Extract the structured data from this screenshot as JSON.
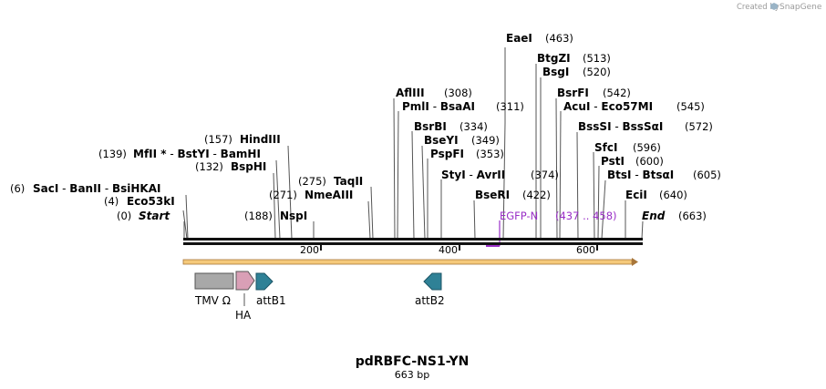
{
  "credit": {
    "text": "Created by",
    "brand": "SnapGene"
  },
  "title": "pdRBFC-NS1-YN",
  "length_label": "663 bp",
  "scale": {
    "start": 0,
    "end": 663,
    "ticks": [
      "200",
      "400",
      "600"
    ]
  },
  "sites": [
    {
      "id": "start",
      "pos": "(0)",
      "name": "Start",
      "italic": true
    },
    {
      "id": "eco53ki",
      "pos": "(4)",
      "name": "Eco53kI"
    },
    {
      "id": "saci",
      "pos": "(6)",
      "name": "SacI",
      "sep1": " - ",
      "name2": "BanII",
      "sep2": " - ",
      "name3": "BsiHKAI"
    },
    {
      "id": "bsphi",
      "pos": "(132)",
      "name": "BspHI"
    },
    {
      "id": "mfli",
      "pos": "(139)",
      "name": "MfII *",
      "sep1": " - ",
      "name2": "BstYI",
      "sep2": " - ",
      "name3": "BamHI"
    },
    {
      "id": "hindiii",
      "pos": "(157)",
      "name": "HindIII"
    },
    {
      "id": "nspi",
      "pos": "(188)",
      "name": "NspI"
    },
    {
      "id": "nmeaiii",
      "pos": "(271)",
      "name": "NmeAIII"
    },
    {
      "id": "taqii",
      "pos": "(275)",
      "name": "TaqII"
    },
    {
      "id": "afliii",
      "pos": "(308)",
      "name": "AflIII"
    },
    {
      "id": "pmli",
      "pos": "(311)",
      "name": "PmlI",
      "sep1": " - ",
      "name2": "BsaAI"
    },
    {
      "id": "bsrbi",
      "pos": "(334)",
      "name": "BsrBI"
    },
    {
      "id": "bseyi",
      "pos": "(349)",
      "name": "BseYI"
    },
    {
      "id": "pspfi",
      "pos": "(353)",
      "name": "PspFI"
    },
    {
      "id": "styi",
      "pos": "(374)",
      "name": "StyI",
      "sep1": " - ",
      "name2": "AvrII"
    },
    {
      "id": "beseri",
      "pos": "(422)",
      "name": "BseRI"
    },
    {
      "id": "eaei",
      "pos": "(463)",
      "name": "EaeI"
    },
    {
      "id": "btgzi",
      "pos": "(513)",
      "name": "BtgZI"
    },
    {
      "id": "bsgi",
      "pos": "(520)",
      "name": "BsgI"
    },
    {
      "id": "bsrfi",
      "pos": "(542)",
      "name": "BsrFI"
    },
    {
      "id": "acui",
      "pos": "(545)",
      "name": "AcuI",
      "sep1": " - ",
      "name2": "Eco57MI"
    },
    {
      "id": "bsssi",
      "pos": "(572)",
      "name": "BssSI",
      "sep1": " - ",
      "name2": "BssSαI"
    },
    {
      "id": "sfci",
      "pos": "(596)",
      "name": "SfcI"
    },
    {
      "id": "psti",
      "pos": "(600)",
      "name": "PstI"
    },
    {
      "id": "btsi",
      "pos": "(605)",
      "name": "BtsI",
      "sep1": " - ",
      "name2": "BtsαI"
    },
    {
      "id": "ecii",
      "pos": "(640)",
      "name": "EciI"
    },
    {
      "id": "end",
      "pos": "(663)",
      "name": "End",
      "italic": true
    }
  ],
  "primer": {
    "name": "EGFP-N",
    "range": "(437 .. 458)",
    "color": "#9a2fc7"
  },
  "features": [
    {
      "id": "tmv",
      "label": "TMV Ω",
      "color": "#a8a8a8"
    },
    {
      "id": "ha",
      "label": "HA",
      "color": "#d99fb6"
    },
    {
      "id": "attb1",
      "label": "attB1",
      "color": "#2f8196"
    },
    {
      "id": "attb2",
      "label": "attB2",
      "color": "#2f8196"
    }
  ],
  "colors": {
    "backbone": "#111111",
    "orf": "#f5c97a",
    "orf_stroke": "#a8763a"
  }
}
